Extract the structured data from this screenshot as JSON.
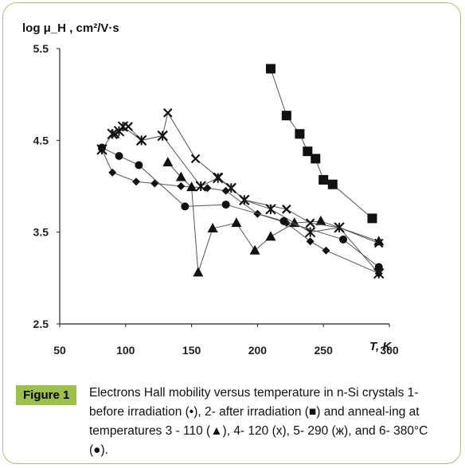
{
  "chart_data": {
    "type": "line",
    "ylabel": "log μ_H , cm²/V·s",
    "xlabel": "T, K",
    "xlim": [
      50,
      300
    ],
    "ylim": [
      2.5,
      5.5
    ],
    "x_ticks": [
      "50",
      "100",
      "150",
      "200",
      "250",
      "300"
    ],
    "y_ticks": [
      "2.5",
      "3.5",
      "4.5",
      "5.5"
    ],
    "x_tick_values": [
      50,
      100,
      150,
      200,
      250,
      300
    ],
    "y_tick_values": [
      2.5,
      3.5,
      4.5,
      5.5
    ],
    "grid": false,
    "series": [
      {
        "marker": "diamond",
        "x": [
          82,
          90,
          108,
          122,
          142,
          162,
          176,
          200,
          222,
          240,
          252,
          292
        ],
        "y": [
          4.4,
          4.15,
          4.05,
          4.03,
          4.0,
          3.98,
          3.95,
          3.7,
          3.6,
          3.4,
          3.3,
          3.05
        ]
      },
      {
        "marker": "square",
        "x": [
          210,
          222,
          232,
          238,
          244,
          250,
          257,
          287
        ],
        "y": [
          5.28,
          4.77,
          4.57,
          4.38,
          4.3,
          4.07,
          4.02,
          3.65
        ]
      },
      {
        "marker": "triangle",
        "x": [
          132,
          142,
          150,
          155,
          166,
          184,
          198,
          210,
          228,
          248,
          292
        ],
        "y": [
          4.26,
          4.1,
          3.99,
          3.06,
          3.54,
          3.6,
          3.3,
          3.45,
          3.6,
          3.62,
          3.4
        ]
      },
      {
        "marker": "x",
        "x": [
          92,
          102,
          112,
          128,
          132,
          153,
          170,
          180,
          190,
          222,
          240,
          262,
          292
        ],
        "y": [
          4.57,
          4.65,
          4.5,
          4.55,
          4.8,
          4.3,
          4.1,
          3.98,
          3.85,
          3.75,
          3.6,
          3.55,
          3.38
        ]
      },
      {
        "marker": "zh",
        "x": [
          82,
          90,
          95,
          98,
          112,
          128,
          157,
          170,
          180,
          190,
          210,
          240,
          262,
          292
        ],
        "y": [
          4.4,
          4.57,
          4.6,
          4.65,
          4.5,
          4.55,
          4.0,
          4.09,
          3.98,
          3.85,
          3.75,
          3.5,
          3.55,
          3.05
        ]
      },
      {
        "marker": "circle",
        "x": [
          82,
          95,
          110,
          145,
          176,
          220,
          265,
          292
        ],
        "y": [
          4.42,
          4.33,
          4.23,
          3.78,
          3.8,
          3.62,
          3.42,
          3.12
        ]
      }
    ]
  },
  "caption": {
    "label": "Figure 1",
    "text": "Electrons Hall mobility versus temperature in n-Si crystals 1-before irradiation (•), 2- after irradiation (■) and anneal-ing at temperatures 3 - 110 (▲), 4- 120 (x), 5- 290 (ж), and 6- 380°C (●)."
  },
  "colors": {
    "frame": "#a9c17a",
    "label_bg": "#9cc04a",
    "series": "#111111",
    "line": "#555555"
  }
}
